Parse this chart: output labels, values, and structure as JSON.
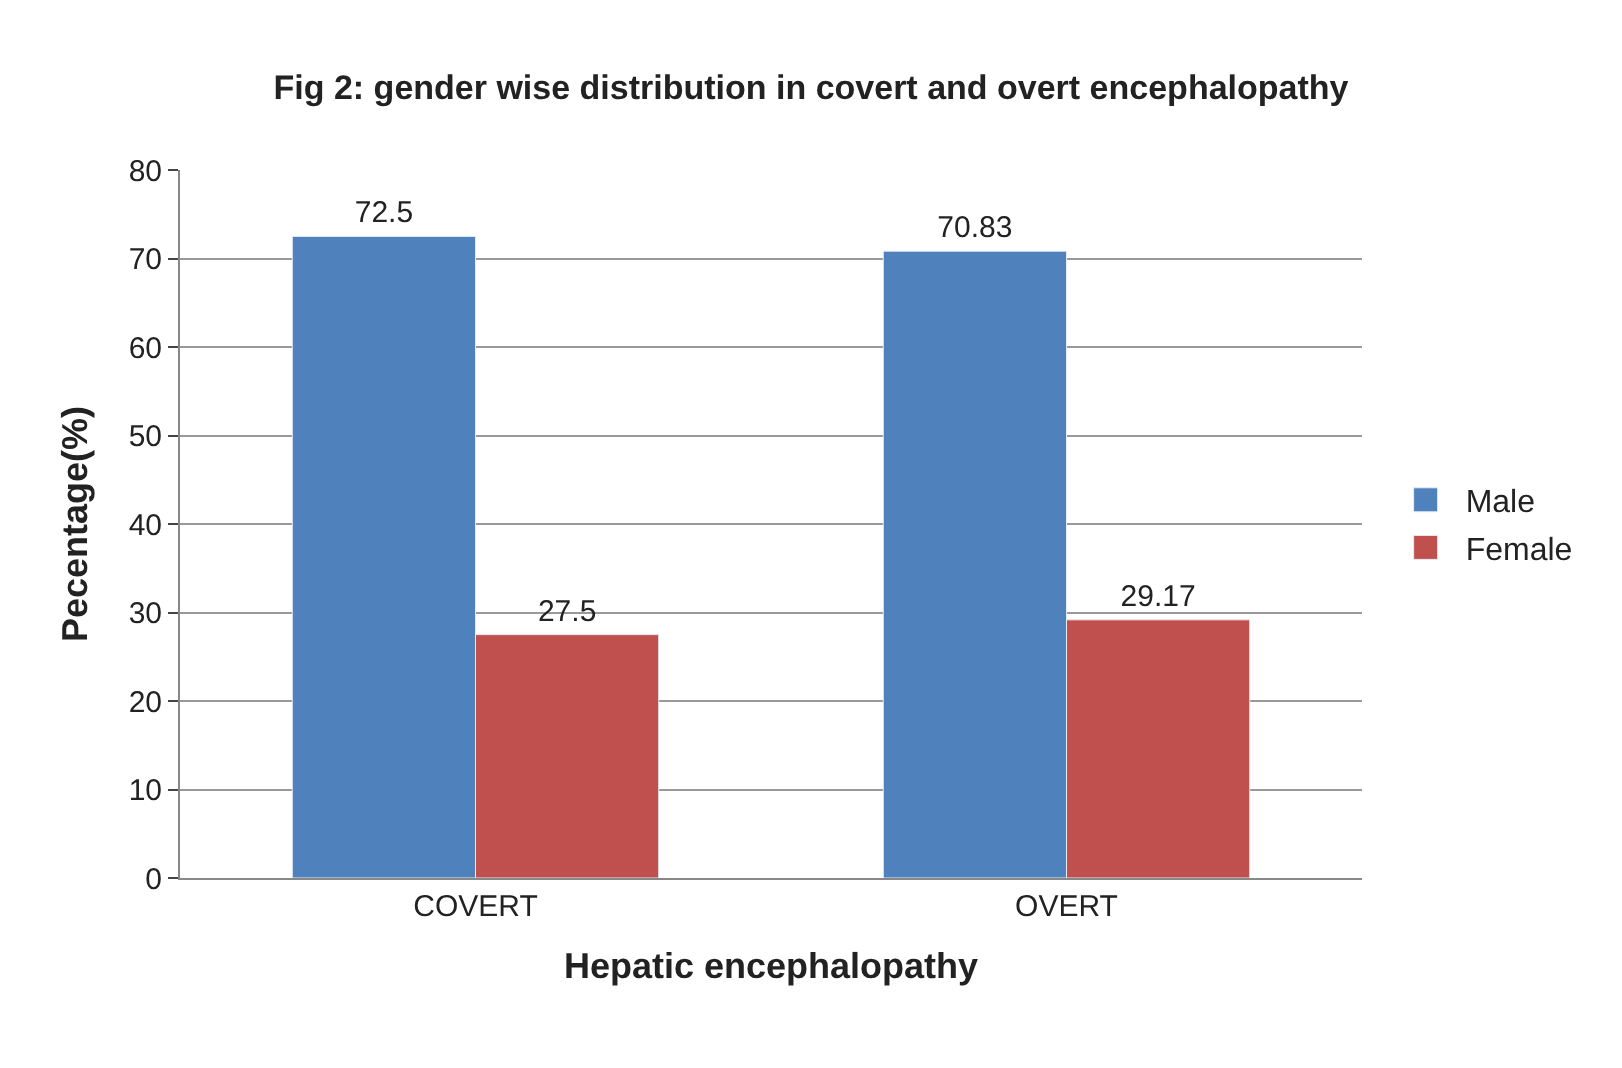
{
  "chart_data": {
    "type": "bar",
    "title": "Fig 2: gender wise distribution in covert and overt encephalopathy",
    "xlabel": "Hepatic encephalopathy",
    "ylabel": "Pecentage(%)",
    "categories": [
      "COVERT",
      "OVERT"
    ],
    "series": [
      {
        "name": "Male",
        "color": "#4f81bd",
        "values": [
          72.5,
          70.83
        ]
      },
      {
        "name": "Female",
        "color": "#c0504d",
        "values": [
          27.5,
          29.17
        ]
      }
    ],
    "ylim": [
      0,
      80
    ],
    "yticks": [
      0,
      10,
      20,
      30,
      40,
      50,
      60,
      70,
      80
    ],
    "grid": "y",
    "legend": "right",
    "data_labels": true
  }
}
